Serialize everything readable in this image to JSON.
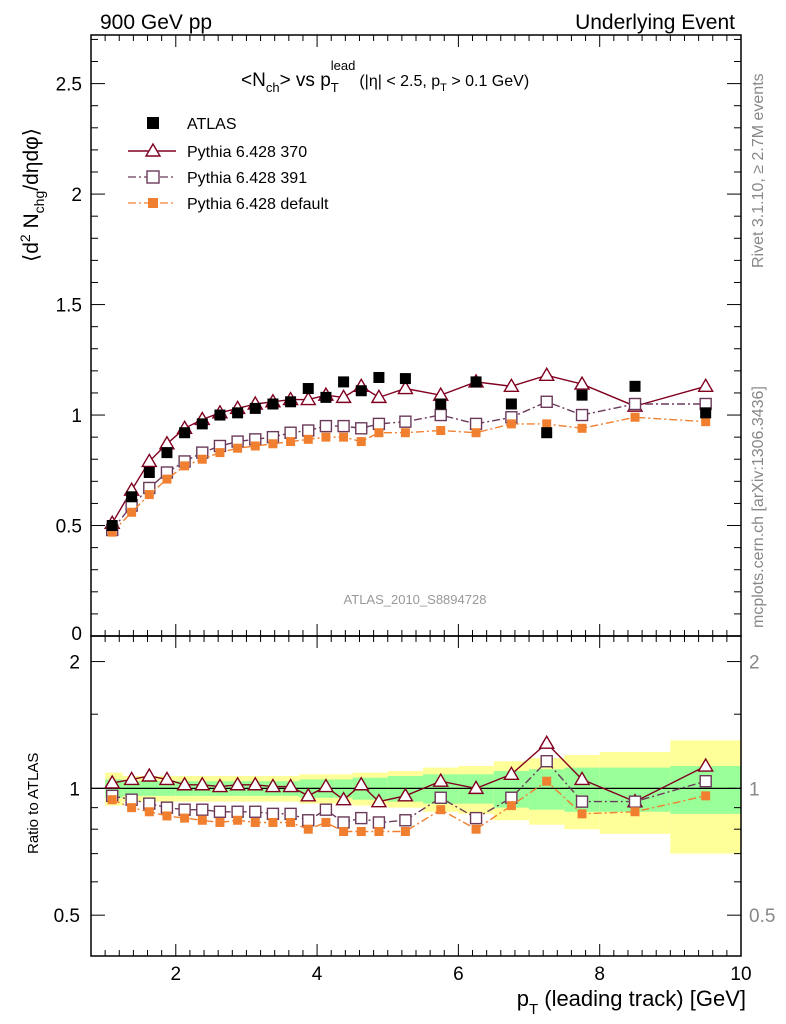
{
  "header": {
    "left_label": "900 GeV pp",
    "right_label": "Underlying Event"
  },
  "side_labels": {
    "rivet": "Rivet 3.1.10, ≥ 2.7M events",
    "mcplots": "mcplots.cern.ch [arXiv:1306.3436]"
  },
  "analysis_label": "ATLAS_2010_S8894728",
  "main_plot": {
    "title_main": "<N",
    "title_sub_ch": "ch",
    "title_mid": "> vs p",
    "title_sub_T": "T",
    "title_sup_lead": "lead",
    "title_paren_open": "(|η| < 2.5, p",
    "title_paren_sub": "T",
    "title_paren_close": " > 0.1 GeV)",
    "ylabel_open": "⟨d",
    "ylabel_sup2": "2",
    "ylabel_N": " N",
    "ylabel_sub": "chg",
    "ylabel_close": "/dηdφ⟩",
    "yticks": [
      "0.5",
      "1",
      "1.5",
      "2",
      "2.5"
    ],
    "ytick_zero": "0"
  },
  "ratio_plot": {
    "ylabel": "Ratio to ATLAS",
    "yticks": [
      "0.5",
      "1",
      "2"
    ],
    "yticks_right": [
      "0.5",
      "1",
      "2"
    ]
  },
  "x_axis": {
    "label_p": "p",
    "label_sub": "T",
    "label_rest": " (leading track) [GeV]",
    "ticks": [
      "2",
      "4",
      "6",
      "8",
      "10"
    ]
  },
  "legend": [
    {
      "label": "ATLAS",
      "color": "#000000",
      "marker": "filled-square"
    },
    {
      "label": "Pythia 6.428 370",
      "color": "#800020",
      "marker": "open-triangle"
    },
    {
      "label": "Pythia 6.428 391",
      "color": "#6b3a5a",
      "marker": "open-square"
    },
    {
      "label": "Pythia 6.428 default",
      "color": "#f08030",
      "marker": "filled-square"
    }
  ],
  "chart_data": {
    "type": "scatter",
    "xlim": [
      0.8,
      10.0
    ],
    "ylim_main": [
      0,
      2.72
    ],
    "ylim_ratio": [
      0.4,
      2.3
    ],
    "x": [
      1.1,
      1.375,
      1.625,
      1.875,
      2.125,
      2.375,
      2.625,
      2.875,
      3.125,
      3.375,
      3.625,
      3.875,
      4.125,
      4.375,
      4.625,
      4.875,
      5.25,
      5.75,
      6.25,
      6.75,
      7.25,
      7.75,
      8.5,
      9.5
    ],
    "series": [
      {
        "name": "ATLAS",
        "values": [
          0.5,
          0.63,
          0.74,
          0.83,
          0.92,
          0.96,
          1.0,
          1.01,
          1.03,
          1.05,
          1.06,
          1.12,
          1.08,
          1.15,
          1.11,
          1.17,
          1.165,
          1.05,
          1.15,
          1.05,
          0.92,
          1.09,
          1.13,
          1.01
        ]
      },
      {
        "name": "Pythia 6.428 370",
        "values": [
          0.51,
          0.66,
          0.79,
          0.87,
          0.94,
          0.98,
          1.01,
          1.03,
          1.05,
          1.06,
          1.07,
          1.07,
          1.09,
          1.08,
          1.13,
          1.08,
          1.12,
          1.09,
          1.15,
          1.13,
          1.18,
          1.14,
          1.04,
          1.13
        ]
      },
      {
        "name": "Pythia 6.428 391",
        "values": [
          0.48,
          0.59,
          0.67,
          0.74,
          0.79,
          0.83,
          0.86,
          0.88,
          0.89,
          0.9,
          0.92,
          0.93,
          0.95,
          0.95,
          0.94,
          0.96,
          0.97,
          1.0,
          0.96,
          0.99,
          1.06,
          1.0,
          1.05,
          1.05
        ]
      },
      {
        "name": "Pythia 6.428 default",
        "values": [
          0.47,
          0.56,
          0.64,
          0.71,
          0.77,
          0.8,
          0.83,
          0.85,
          0.86,
          0.87,
          0.88,
          0.89,
          0.9,
          0.9,
          0.88,
          0.92,
          0.92,
          0.93,
          0.92,
          0.96,
          0.96,
          0.94,
          0.99,
          0.97
        ]
      }
    ],
    "ratio_series": [
      {
        "name": "Pythia 6.428 370",
        "values": [
          1.03,
          1.05,
          1.07,
          1.05,
          1.02,
          1.02,
          1.01,
          1.02,
          1.02,
          1.01,
          1.01,
          0.96,
          1.01,
          0.94,
          1.02,
          0.93,
          0.96,
          1.04,
          1.0,
          1.08,
          1.28,
          1.05,
          0.93,
          1.13
        ]
      },
      {
        "name": "Pythia 6.428 391",
        "values": [
          0.96,
          0.94,
          0.92,
          0.9,
          0.89,
          0.89,
          0.88,
          0.88,
          0.88,
          0.87,
          0.87,
          0.84,
          0.89,
          0.83,
          0.85,
          0.83,
          0.84,
          0.95,
          0.85,
          0.95,
          1.16,
          0.93,
          0.93,
          1.04
        ]
      },
      {
        "name": "Pythia 6.428 default",
        "values": [
          0.94,
          0.9,
          0.88,
          0.86,
          0.85,
          0.84,
          0.83,
          0.84,
          0.83,
          0.83,
          0.83,
          0.8,
          0.83,
          0.79,
          0.79,
          0.79,
          0.79,
          0.89,
          0.8,
          0.91,
          1.04,
          0.87,
          0.88,
          0.96
        ]
      }
    ],
    "uncertainty_bands": {
      "edges": [
        1.0,
        1.25,
        1.5,
        1.75,
        2.0,
        2.25,
        2.5,
        2.75,
        3.0,
        3.25,
        3.5,
        3.75,
        4.0,
        4.25,
        4.5,
        4.75,
        5.0,
        5.5,
        6.0,
        6.5,
        7.0,
        7.5,
        8.0,
        9.0,
        10.0
      ],
      "inner": [
        0.05,
        0.04,
        0.04,
        0.04,
        0.04,
        0.04,
        0.04,
        0.04,
        0.04,
        0.04,
        0.04,
        0.05,
        0.05,
        0.05,
        0.06,
        0.06,
        0.07,
        0.08,
        0.08,
        0.1,
        0.11,
        0.12,
        0.12,
        0.13
      ],
      "outer": [
        0.09,
        0.07,
        0.07,
        0.07,
        0.07,
        0.07,
        0.07,
        0.07,
        0.07,
        0.07,
        0.07,
        0.08,
        0.08,
        0.08,
        0.09,
        0.09,
        0.1,
        0.12,
        0.13,
        0.16,
        0.18,
        0.2,
        0.22,
        0.3
      ]
    }
  }
}
